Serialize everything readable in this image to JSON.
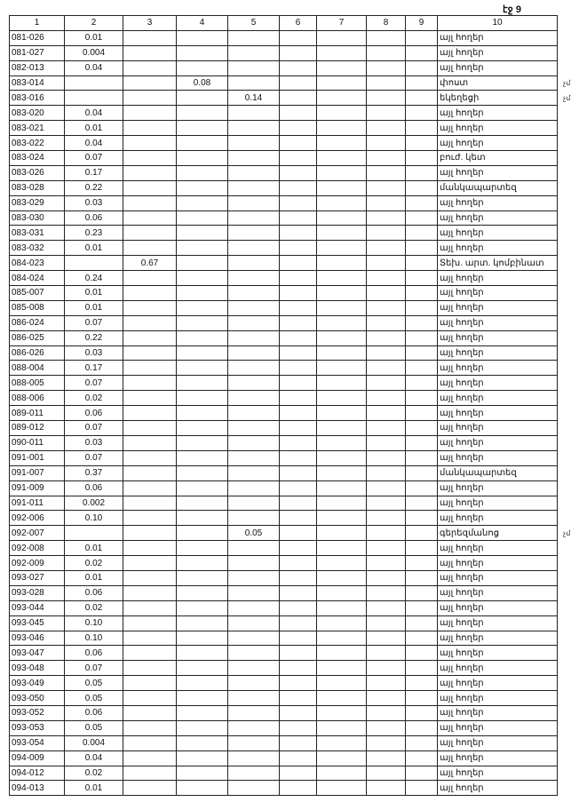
{
  "page_label": "էջ 9",
  "headers": [
    "1",
    "2",
    "3",
    "4",
    "5",
    "6",
    "7",
    "8",
    "9",
    "10"
  ],
  "rows": [
    [
      "081-026",
      "0.01",
      "",
      "",
      "",
      "",
      "",
      "",
      "",
      "այլ հողեր"
    ],
    [
      "081-027",
      "0.004",
      "",
      "",
      "",
      "",
      "",
      "",
      "",
      "այլ հողեր"
    ],
    [
      "082-013",
      "0.04",
      "",
      "",
      "",
      "",
      "",
      "",
      "",
      "այլ հողեր"
    ],
    [
      "083-014",
      "",
      "",
      "0.08",
      "",
      "",
      "",
      "",
      "",
      "փոստ"
    ],
    [
      "083-016",
      "",
      "",
      "",
      "0.14",
      "",
      "",
      "",
      "",
      "եկեղեցի"
    ],
    [
      "083-020",
      "0.04",
      "",
      "",
      "",
      "",
      "",
      "",
      "",
      "այլ հողեր"
    ],
    [
      "083-021",
      "0.01",
      "",
      "",
      "",
      "",
      "",
      "",
      "",
      "այլ հողեր"
    ],
    [
      "083-022",
      "0.04",
      "",
      "",
      "",
      "",
      "",
      "",
      "",
      "այլ հողեր"
    ],
    [
      "083-024",
      "0.07",
      "",
      "",
      "",
      "",
      "",
      "",
      "",
      "բուժ. կետ"
    ],
    [
      "083-026",
      "0.17",
      "",
      "",
      "",
      "",
      "",
      "",
      "",
      "այլ հողեր"
    ],
    [
      "083-028",
      "0.22",
      "",
      "",
      "",
      "",
      "",
      "",
      "",
      "մանկապարտեզ"
    ],
    [
      "083-029",
      "0.03",
      "",
      "",
      "",
      "",
      "",
      "",
      "",
      "այլ հողեր"
    ],
    [
      "083-030",
      "0.06",
      "",
      "",
      "",
      "",
      "",
      "",
      "",
      "այլ հողեր"
    ],
    [
      "083-031",
      "0.23",
      "",
      "",
      "",
      "",
      "",
      "",
      "",
      "այլ հողեր"
    ],
    [
      "083-032",
      "0.01",
      "",
      "",
      "",
      "",
      "",
      "",
      "",
      "այլ հողեր"
    ],
    [
      "084-023",
      "",
      "0.67",
      "",
      "",
      "",
      "",
      "",
      "",
      "Տեխ. արտ. կոմբինատ"
    ],
    [
      "084-024",
      "0.24",
      "",
      "",
      "",
      "",
      "",
      "",
      "",
      "այլ հողեր"
    ],
    [
      "085-007",
      "0.01",
      "",
      "",
      "",
      "",
      "",
      "",
      "",
      "այլ հողեր"
    ],
    [
      "085-008",
      "0.01",
      "",
      "",
      "",
      "",
      "",
      "",
      "",
      "այլ հողեր"
    ],
    [
      "086-024",
      "0.07",
      "",
      "",
      "",
      "",
      "",
      "",
      "",
      "այլ հողեր"
    ],
    [
      "086-025",
      "0.22",
      "",
      "",
      "",
      "",
      "",
      "",
      "",
      "այլ հողեր"
    ],
    [
      "086-026",
      "0.03",
      "",
      "",
      "",
      "",
      "",
      "",
      "",
      "այլ հողեր"
    ],
    [
      "088-004",
      "0.17",
      "",
      "",
      "",
      "",
      "",
      "",
      "",
      "այլ հողեր"
    ],
    [
      "088-005",
      "0.07",
      "",
      "",
      "",
      "",
      "",
      "",
      "",
      "այլ հողեր"
    ],
    [
      "088-006",
      "0.02",
      "",
      "",
      "",
      "",
      "",
      "",
      "",
      "այլ հողեր"
    ],
    [
      "089-011",
      "0.06",
      "",
      "",
      "",
      "",
      "",
      "",
      "",
      "այլ հողեր"
    ],
    [
      "089-012",
      "0.07",
      "",
      "",
      "",
      "",
      "",
      "",
      "",
      "այլ հողեր"
    ],
    [
      "090-011",
      "0.03",
      "",
      "",
      "",
      "",
      "",
      "",
      "",
      "այլ հողեր"
    ],
    [
      "091-001",
      "0.07",
      "",
      "",
      "",
      "",
      "",
      "",
      "",
      "այլ հողեր"
    ],
    [
      "091-007",
      "0.37",
      "",
      "",
      "",
      "",
      "",
      "",
      "",
      "մանկապարտեզ"
    ],
    [
      "091-009",
      "0.06",
      "",
      "",
      "",
      "",
      "",
      "",
      "",
      "այլ հողեր"
    ],
    [
      "091-011",
      "0.002",
      "",
      "",
      "",
      "",
      "",
      "",
      "",
      "այլ հողեր"
    ],
    [
      "092-006",
      "0.10",
      "",
      "",
      "",
      "",
      "",
      "",
      "",
      "այլ հողեր"
    ],
    [
      "092-007",
      "",
      "",
      "",
      "0.05",
      "",
      "",
      "",
      "",
      "գերեզմանոց"
    ],
    [
      "092-008",
      "0.01",
      "",
      "",
      "",
      "",
      "",
      "",
      "",
      "այլ հողեր"
    ],
    [
      "092-009",
      "0.02",
      "",
      "",
      "",
      "",
      "",
      "",
      "",
      "այլ հողեր"
    ],
    [
      "093-027",
      "0.01",
      "",
      "",
      "",
      "",
      "",
      "",
      "",
      "այլ հողեր"
    ],
    [
      "093-028",
      "0.06",
      "",
      "",
      "",
      "",
      "",
      "",
      "",
      "այլ հողեր"
    ],
    [
      "093-044",
      "0.02",
      "",
      "",
      "",
      "",
      "",
      "",
      "",
      "այլ հողեր"
    ],
    [
      "093-045",
      "0.10",
      "",
      "",
      "",
      "",
      "",
      "",
      "",
      "այլ հողեր"
    ],
    [
      "093-046",
      "0.10",
      "",
      "",
      "",
      "",
      "",
      "",
      "",
      "այլ հողեր"
    ],
    [
      "093-047",
      "0.06",
      "",
      "",
      "",
      "",
      "",
      "",
      "",
      "այլ հողեր"
    ],
    [
      "093-048",
      "0.07",
      "",
      "",
      "",
      "",
      "",
      "",
      "",
      "այլ հողեր"
    ],
    [
      "093-049",
      "0.05",
      "",
      "",
      "",
      "",
      "",
      "",
      "",
      "այլ հողեր"
    ],
    [
      "093-050",
      "0.05",
      "",
      "",
      "",
      "",
      "",
      "",
      "",
      "այլ հողեր"
    ],
    [
      "093-052",
      "0.06",
      "",
      "",
      "",
      "",
      "",
      "",
      "",
      "այլ հողեր"
    ],
    [
      "093-053",
      "0.05",
      "",
      "",
      "",
      "",
      "",
      "",
      "",
      "այլ հողեր"
    ],
    [
      "093-054",
      "0.004",
      "",
      "",
      "",
      "",
      "",
      "",
      "",
      "այլ հողեր"
    ],
    [
      "094-009",
      "0.04",
      "",
      "",
      "",
      "",
      "",
      "",
      "",
      "այլ հողեր"
    ],
    [
      "094-012",
      "0.02",
      "",
      "",
      "",
      "",
      "",
      "",
      "",
      "այլ հողեր"
    ],
    [
      "094-013",
      "0.01",
      "",
      "",
      "",
      "",
      "",
      "",
      "",
      "այլ հողեր"
    ]
  ],
  "margin_marks": [
    {
      "row": 3,
      "text": "չմ"
    },
    {
      "row": 4,
      "text": "չմ"
    },
    {
      "row": 33,
      "text": "չմ"
    }
  ]
}
